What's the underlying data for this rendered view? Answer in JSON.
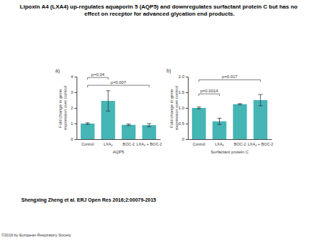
{
  "title": "Lipoxin A4 (LXA4) up-regulates aquaporin 5 (AQP5) and downregulates surfactant protein C but has no effect on receptor for advanced glycation end products.",
  "citation": "Shengxing Zheng et al. ERJ Open Res 2016;2:00079-2015",
  "copyright": "©2016 by European Respiratory Society",
  "chart_data": [
    {
      "type": "bar",
      "panel": "a)",
      "xlabel": "AQP5",
      "ylabel": "Fold change in gene expression over control",
      "categories": [
        "Control",
        "LXA₄",
        "BOC-2",
        "LXA₄ + BOC-2"
      ],
      "values": [
        1.0,
        2.45,
        0.92,
        0.9
      ],
      "errors": [
        0.05,
        0.65,
        0.05,
        0.1
      ],
      "color": "#45b5b5",
      "ylim": [
        0,
        4
      ],
      "yticks": [
        0,
        1,
        2,
        3,
        4
      ],
      "grid": false,
      "annotations": [
        {
          "text": "p=0.04",
          "from": 0,
          "to": 1,
          "y": 3.95
        },
        {
          "text": "p=0.007",
          "from": 0,
          "to": 3,
          "y": 3.45
        }
      ]
    },
    {
      "type": "bar",
      "panel": "b)",
      "xlabel": "Surfactant protein C",
      "ylabel": "Fold change in gene expression over control",
      "categories": [
        "Control",
        "LXA₄",
        "BOC-2",
        "LXA₄ + BOC-2"
      ],
      "values": [
        1.0,
        0.57,
        1.12,
        1.25
      ],
      "errors": [
        0.03,
        0.1,
        0.02,
        0.18
      ],
      "color": "#45b5b5",
      "ylim": [
        0,
        2
      ],
      "yticks": [
        0,
        0.5,
        {
          "value": 1,
          "label": "1.0"
        },
        1.5,
        {
          "value": 2,
          "label": "2.0"
        }
      ],
      "grid": false,
      "annotations": [
        {
          "text": "p=0.0014",
          "from": 0,
          "to": 1,
          "y": 1.45
        },
        {
          "text": "p=0.017",
          "from": 0,
          "to": 3,
          "y": 1.9
        }
      ]
    }
  ]
}
